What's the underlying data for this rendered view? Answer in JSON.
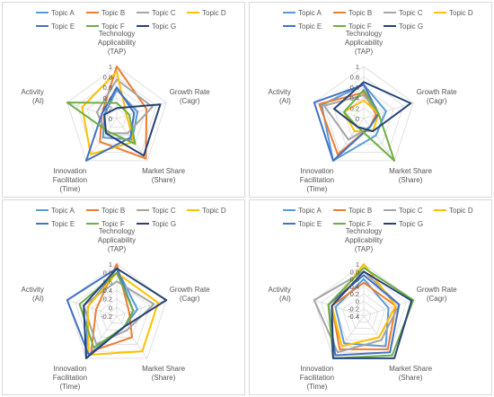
{
  "chart_data": [
    {
      "type": "radar",
      "axes": [
        "Technology Applicability (TAP)",
        "Growth Rate (Cagr)",
        "Market Share (Share)",
        "Innovation Facilitation (Time)",
        "Activity (AI)"
      ],
      "ticks": [
        "0",
        "0.2",
        "0.4",
        "0.6",
        "0.8",
        "1"
      ],
      "rlim": [
        0,
        1
      ],
      "legend_position": "top",
      "series": [
        {
          "name": "Topic A",
          "color": "#5B9BD5",
          "values": [
            0.55,
            0.42,
            0.5,
            0.45,
            0.25
          ]
        },
        {
          "name": "Topic B",
          "color": "#ED7D31",
          "values": [
            1.0,
            0.6,
            0.95,
            0.55,
            0.3
          ]
        },
        {
          "name": "Topic C",
          "color": "#A5A5A5",
          "values": [
            0.75,
            0.72,
            0.35,
            0.35,
            0.4
          ]
        },
        {
          "name": "Topic D",
          "color": "#FFC000",
          "values": [
            0.9,
            0.2,
            0.55,
            0.85,
            0.7
          ]
        },
        {
          "name": "Topic E",
          "color": "#4472C4",
          "values": [
            0.6,
            0.35,
            0.45,
            1.0,
            0.3
          ]
        },
        {
          "name": "Topic F",
          "color": "#70AD47",
          "values": [
            0.3,
            0.25,
            0.6,
            0.3,
            1.0
          ]
        },
        {
          "name": "Topic G",
          "color": "#264478",
          "values": [
            0.2,
            0.88,
            0.88,
            0.35,
            0.25
          ]
        }
      ]
    },
    {
      "type": "radar",
      "axes": [
        "Technology Applicability (TAP)",
        "Growth Rate (Cagr)",
        "Market Share (Share)",
        "Innovation Facilitation (Time)",
        "Activity (AI)"
      ],
      "ticks": [
        "0",
        "0.2",
        "0.4",
        "0.6",
        "0.8",
        "1"
      ],
      "rlim": [
        0,
        1
      ],
      "legend_position": "top",
      "series": [
        {
          "name": "Topic A",
          "color": "#5B9BD5",
          "values": [
            0.65,
            0.45,
            0.4,
            1.0,
            0.85
          ]
        },
        {
          "name": "Topic B",
          "color": "#ED7D31",
          "values": [
            0.5,
            0.25,
            0.2,
            0.85,
            0.9
          ]
        },
        {
          "name": "Topic C",
          "color": "#A5A5A5",
          "values": [
            0.45,
            0.3,
            0.2,
            0.5,
            0.8
          ]
        },
        {
          "name": "Topic D",
          "color": "#FFC000",
          "values": [
            0.35,
            0.3,
            0.3,
            0.3,
            0.4
          ]
        },
        {
          "name": "Topic E",
          "color": "#4472C4",
          "values": [
            0.65,
            0.3,
            0.2,
            1.0,
            1.0
          ]
        },
        {
          "name": "Topic F",
          "color": "#70AD47",
          "values": [
            0.55,
            0.3,
            1.0,
            0.2,
            0.4
          ]
        },
        {
          "name": "Topic G",
          "color": "#264478",
          "values": [
            0.7,
            0.95,
            0.3,
            0.2,
            0.6
          ]
        }
      ]
    },
    {
      "type": "radar",
      "axes": [
        "Technology Applicability (TAP)",
        "Growth Rate (Cagr)",
        "Market Share (Share)",
        "Innovation Facilitation (Time)",
        "Activity (AI)"
      ],
      "ticks": [
        "-0.2",
        "0",
        "0.2",
        "0.4",
        "0.6",
        "0.8",
        "1"
      ],
      "rlim": [
        -0.2,
        1
      ],
      "legend_position": "top",
      "series": [
        {
          "name": "Topic A",
          "color": "#5B9BD5",
          "values": [
            0.9,
            0.3,
            0.1,
            1.0,
            0.5
          ]
        },
        {
          "name": "Topic B",
          "color": "#ED7D31",
          "values": [
            1.0,
            0.1,
            0.4,
            0.8,
            0.3
          ]
        },
        {
          "name": "Topic C",
          "color": "#A5A5A5",
          "values": [
            0.6,
            0.7,
            0.2,
            0.6,
            0.6
          ]
        },
        {
          "name": "Topic D",
          "color": "#FFC000",
          "values": [
            0.8,
            0.8,
            0.8,
            0.9,
            0.5
          ]
        },
        {
          "name": "Topic E",
          "color": "#4472C4",
          "values": [
            0.9,
            0.2,
            0.1,
            0.9,
            1.0
          ]
        },
        {
          "name": "Topic F",
          "color": "#70AD47",
          "values": [
            0.8,
            0.2,
            0.1,
            0.7,
            0.7
          ]
        },
        {
          "name": "Topic G",
          "color": "#264478",
          "values": [
            0.9,
            1.0,
            0.1,
            1.0,
            0.6
          ]
        }
      ]
    },
    {
      "type": "radar",
      "axes": [
        "Technology Applicability (TAP)",
        "Growth Rate (Cagr)",
        "Market Share (Share)",
        "Innovation Facilitation (Time)",
        "Activity (AI)"
      ],
      "ticks": [
        "-0.4",
        "-0.2",
        "0",
        "0.2",
        "0.4",
        "0.6",
        "0.8",
        "1"
      ],
      "rlim": [
        -0.4,
        1
      ],
      "legend_position": "top",
      "series": [
        {
          "name": "Topic A",
          "color": "#5B9BD5",
          "values": [
            0.6,
            0.3,
            0.6,
            0.5,
            0.4
          ]
        },
        {
          "name": "Topic B",
          "color": "#ED7D31",
          "values": [
            0.5,
            0.5,
            0.7,
            0.7,
            0.5
          ]
        },
        {
          "name": "Topic C",
          "color": "#A5A5A5",
          "values": [
            0.8,
            0.6,
            0.4,
            0.8,
            1.0
          ]
        },
        {
          "name": "Topic D",
          "color": "#FFC000",
          "values": [
            1.0,
            0.5,
            0.3,
            0.6,
            0.5
          ]
        },
        {
          "name": "Topic E",
          "color": "#4472C4",
          "values": [
            0.7,
            0.6,
            0.8,
            0.9,
            0.6
          ]
        },
        {
          "name": "Topic F",
          "color": "#70AD47",
          "values": [
            0.9,
            1.0,
            0.9,
            1.0,
            0.6
          ]
        },
        {
          "name": "Topic G",
          "color": "#264478",
          "values": [
            0.8,
            0.95,
            1.0,
            1.0,
            0.5
          ]
        }
      ]
    }
  ]
}
